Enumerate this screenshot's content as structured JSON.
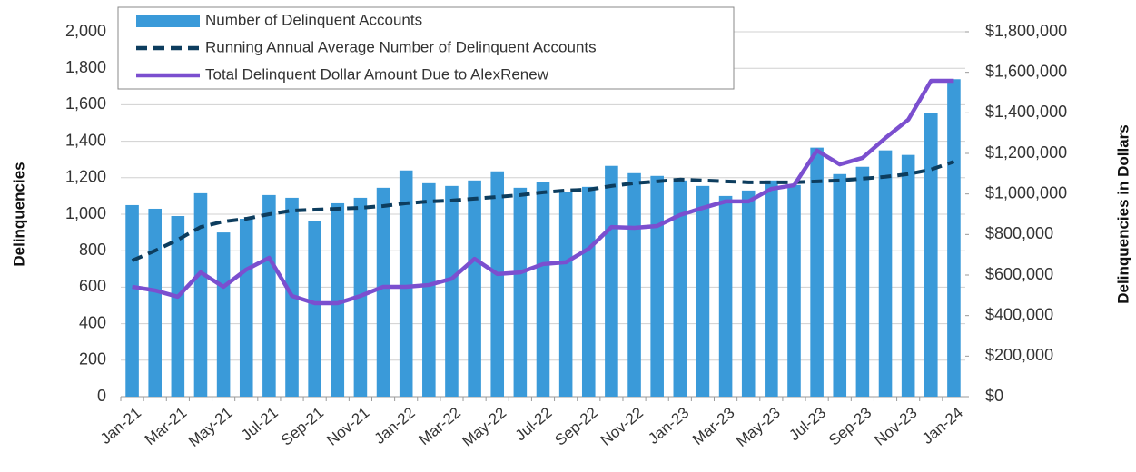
{
  "chart_data": {
    "type": "bar",
    "categories": [
      "Jan-21",
      null,
      "Mar-21",
      null,
      "May-21",
      null,
      "Jul-21",
      null,
      "Sep-21",
      null,
      "Nov-21",
      null,
      "Jan-22",
      null,
      "Mar-22",
      null,
      "May-22",
      null,
      "Jul-22",
      null,
      "Sep-22",
      null,
      "Nov-22",
      null,
      "Jan-23",
      null,
      "Mar-23",
      null,
      "May-23",
      null,
      "Jul-23",
      null,
      "Sep-23",
      null,
      "Nov-23",
      null,
      "Jan-24"
    ],
    "series": [
      {
        "name": "Number of Delinquent Accounts",
        "type": "bar",
        "color": "#3a9ad9",
        "values": [
          1050,
          1030,
          990,
          1115,
          900,
          975,
          1105,
          1090,
          965,
          1060,
          1090,
          1145,
          1240,
          1170,
          1155,
          1185,
          1235,
          1145,
          1175,
          1120,
          1150,
          1265,
          1225,
          1210,
          1185,
          1155,
          1100,
          1130,
          1185,
          1160,
          1365,
          1220,
          1260,
          1350,
          1325,
          1555,
          1740
        ]
      },
      {
        "name": "Running Annual Average Number of Delinquent Accounts",
        "type": "line",
        "dashed": true,
        "color": "#0d3d5e",
        "values": [
          746,
          800,
          860,
          930,
          960,
          975,
          1000,
          1020,
          1025,
          1030,
          1035,
          1045,
          1060,
          1070,
          1075,
          1085,
          1095,
          1105,
          1120,
          1130,
          1135,
          1155,
          1170,
          1180,
          1190,
          1185,
          1180,
          1175,
          1175,
          1175,
          1180,
          1185,
          1195,
          1205,
          1220,
          1245,
          1288
        ]
      },
      {
        "name": "Total Delinquent Dollar Amount Due to AlexRenew",
        "type": "line",
        "axis": "y2",
        "color": "#7b4fcf",
        "values": [
          542000,
          524000,
          493000,
          613000,
          542000,
          627000,
          685000,
          497000,
          461000,
          461000,
          497000,
          542000,
          542000,
          551000,
          582000,
          680000,
          605000,
          613000,
          654000,
          663000,
          730000,
          837000,
          833000,
          842000,
          896000,
          931000,
          963000,
          963000,
          1025000,
          1043000,
          1214000,
          1146000,
          1178000,
          1276000,
          1366000,
          1558000,
          1558000
        ]
      }
    ],
    "ylabel": "Delinquencies",
    "y2label": "Delinquencies in Dollars",
    "ylim": [
      0,
      2000
    ],
    "yticks": [
      0,
      200,
      400,
      600,
      800,
      {
        "value": 1000,
        "label": "1,000"
      },
      {
        "value": 1200,
        "label": "1,200"
      },
      {
        "value": 1400,
        "label": "1,400"
      },
      {
        "value": 1600,
        "label": "1,600"
      },
      {
        "value": 1800,
        "label": "1,800"
      },
      {
        "value": 2000,
        "label": "2,000"
      }
    ],
    "y2lim": [
      0,
      1800000
    ],
    "y2ticks": [
      {
        "value": 0,
        "label": "$0"
      },
      {
        "value": 200000,
        "label": "$200,000"
      },
      {
        "value": 400000,
        "label": "$400,000"
      },
      {
        "value": 600000,
        "label": "$600,000"
      },
      {
        "value": 800000,
        "label": "$800,000"
      },
      {
        "value": 1000000,
        "label": "$1,000,000"
      },
      {
        "value": 1200000,
        "label": "$1,200,000"
      },
      {
        "value": 1400000,
        "label": "$1,400,000"
      },
      {
        "value": 1600000,
        "label": "$1,600,000"
      },
      {
        "value": 1800000,
        "label": "$1,800,000"
      }
    ],
    "grid": true,
    "legend": "upper left"
  }
}
